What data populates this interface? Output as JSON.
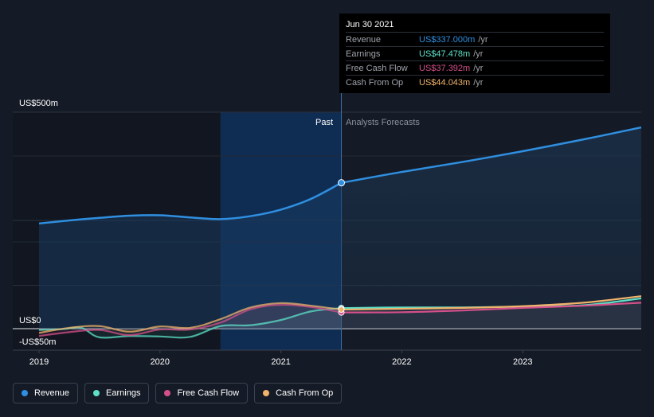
{
  "chart_data": {
    "type": "area",
    "y_axis_labels": [
      "US$500m",
      "US$0",
      "-US$50m"
    ],
    "ylim": [
      -50,
      500
    ],
    "xlim": [
      2019,
      2023.98
    ],
    "x_ticks": [
      {
        "value": 2019,
        "label": "2019"
      },
      {
        "value": 2020,
        "label": "2020"
      },
      {
        "value": 2021,
        "label": "2021"
      },
      {
        "value": 2022,
        "label": "2022"
      },
      {
        "value": 2023,
        "label": "2023"
      }
    ],
    "past_label": "Past",
    "forecast_label": "Analysts Forecasts",
    "divider_x": 2021.5,
    "highlight_start": 2020.5,
    "series": [
      {
        "name": "Revenue",
        "color": "#2f8fe0",
        "points": [
          [
            2019,
            243
          ],
          [
            2019.25,
            250
          ],
          [
            2019.5,
            256
          ],
          [
            2019.75,
            261
          ],
          [
            2020,
            262
          ],
          [
            2020.25,
            257
          ],
          [
            2020.5,
            253
          ],
          [
            2020.75,
            260
          ],
          [
            2021,
            275
          ],
          [
            2021.25,
            300
          ],
          [
            2021.5,
            337
          ]
        ],
        "forecast": [
          [
            2021.5,
            337
          ],
          [
            2022,
            362
          ],
          [
            2022.5,
            385
          ],
          [
            2023,
            410
          ],
          [
            2023.5,
            437
          ],
          [
            2023.98,
            465
          ]
        ]
      },
      {
        "name": "Earnings",
        "color": "#5ee0c8",
        "points": [
          [
            2019,
            -3
          ],
          [
            2019.2,
            -1
          ],
          [
            2019.35,
            2
          ],
          [
            2019.5,
            -20
          ],
          [
            2019.75,
            -17
          ],
          [
            2020,
            -18
          ],
          [
            2020.25,
            -19
          ],
          [
            2020.5,
            6
          ],
          [
            2020.75,
            8
          ],
          [
            2021,
            20
          ],
          [
            2021.25,
            40
          ],
          [
            2021.5,
            47.478
          ]
        ],
        "forecast": [
          [
            2021.5,
            47.478
          ],
          [
            2022,
            49
          ],
          [
            2022.5,
            49
          ],
          [
            2023,
            51
          ],
          [
            2023.5,
            54
          ],
          [
            2023.98,
            70
          ]
        ]
      },
      {
        "name": "Free Cash Flow",
        "color": "#d4508a",
        "points": [
          [
            2019,
            -17
          ],
          [
            2019.25,
            -8
          ],
          [
            2019.5,
            -3
          ],
          [
            2019.75,
            -15
          ],
          [
            2020,
            -2
          ],
          [
            2020.25,
            -2
          ],
          [
            2020.5,
            14
          ],
          [
            2020.75,
            45
          ],
          [
            2021,
            55
          ],
          [
            2021.25,
            50
          ],
          [
            2021.5,
            37.392
          ]
        ],
        "forecast": [
          [
            2021.5,
            37.392
          ],
          [
            2022,
            38
          ],
          [
            2022.5,
            42
          ],
          [
            2023,
            48
          ],
          [
            2023.5,
            53
          ],
          [
            2023.98,
            60
          ]
        ]
      },
      {
        "name": "Cash From Op",
        "color": "#f2b36b",
        "points": [
          [
            2019,
            -10
          ],
          [
            2019.25,
            2
          ],
          [
            2019.5,
            6
          ],
          [
            2019.75,
            -7
          ],
          [
            2020,
            5
          ],
          [
            2020.25,
            2
          ],
          [
            2020.5,
            22
          ],
          [
            2020.75,
            49
          ],
          [
            2021,
            59
          ],
          [
            2021.25,
            53
          ],
          [
            2021.5,
            44.043
          ]
        ],
        "forecast": [
          [
            2021.5,
            44.043
          ],
          [
            2022,
            46
          ],
          [
            2022.5,
            48
          ],
          [
            2023,
            52
          ],
          [
            2023.5,
            60
          ],
          [
            2023.98,
            75
          ]
        ]
      }
    ]
  },
  "tooltip": {
    "date": "Jun 30 2021",
    "rows": [
      {
        "name": "Revenue",
        "value": "US$337.000m",
        "unit": "/yr",
        "color": "#2f8fe0"
      },
      {
        "name": "Earnings",
        "value": "US$47.478m",
        "unit": "/yr",
        "color": "#5ee0c8"
      },
      {
        "name": "Free Cash Flow",
        "value": "US$37.392m",
        "unit": "/yr",
        "color": "#d4508a"
      },
      {
        "name": "Cash From Op",
        "value": "US$44.043m",
        "unit": "/yr",
        "color": "#f2b36b"
      }
    ]
  },
  "legend": [
    {
      "label": "Revenue",
      "color": "#2f8fe0"
    },
    {
      "label": "Earnings",
      "color": "#5ee0c8"
    },
    {
      "label": "Free Cash Flow",
      "color": "#d4508a"
    },
    {
      "label": "Cash From Op",
      "color": "#f2b36b"
    }
  ]
}
